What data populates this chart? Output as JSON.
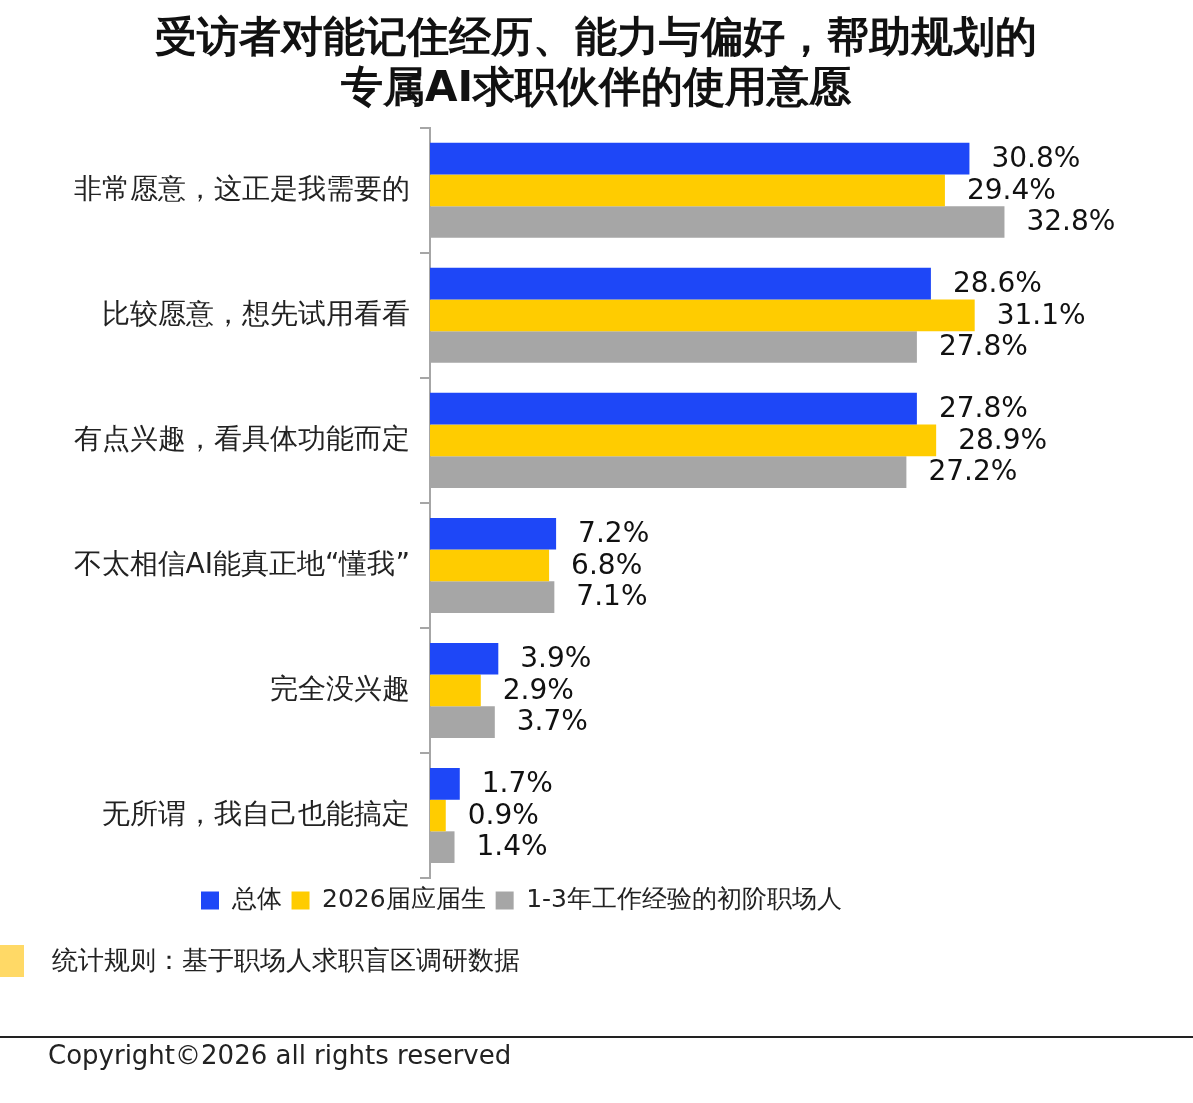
{
  "chart_data": {
    "type": "bar",
    "orientation": "horizontal",
    "title": "受访者对能记住经历、能力与偏好，帮助规划的专属AI求职伙伴的使用意愿",
    "categories": [
      "非常愿意，这正是我需要的",
      "比较愿意，想先试用看看",
      "有点兴趣，看具体功能而定",
      "不太相信AI能真正地“懂我”",
      "完全没兴趣",
      "无所谓，我自己也能搞定"
    ],
    "series": [
      {
        "name": "总体",
        "color": "#1e47f7",
        "values": [
          30.8,
          28.6,
          27.8,
          7.2,
          3.9,
          1.7
        ],
        "value_labels": [
          "30.8%",
          "28.6%",
          "27.8%",
          "7.2%",
          "3.9%",
          "1.7%"
        ]
      },
      {
        "name": "2026届应届生",
        "color": "#ffcc00",
        "values": [
          29.4,
          31.1,
          28.9,
          6.8,
          2.9,
          0.9
        ],
        "value_labels": [
          "29.4%",
          "31.1%",
          "28.9%",
          "6.8%",
          "2.9%",
          "0.9%"
        ]
      },
      {
        "name": "1-3年工作经验的初阶职场人",
        "color": "#a6a6a6",
        "values": [
          32.8,
          27.8,
          27.2,
          7.1,
          3.7,
          1.4
        ],
        "value_labels": [
          "32.8%",
          "27.8%",
          "27.2%",
          "7.1%",
          "3.7%",
          "1.4%"
        ]
      }
    ],
    "annotations": [
      "统计规则：基于职场人求职盲区调研数据",
      "Copyright©2026 all rights reserved"
    ],
    "legend": "bottom",
    "grid": false,
    "tick_labels": "y"
  }
}
